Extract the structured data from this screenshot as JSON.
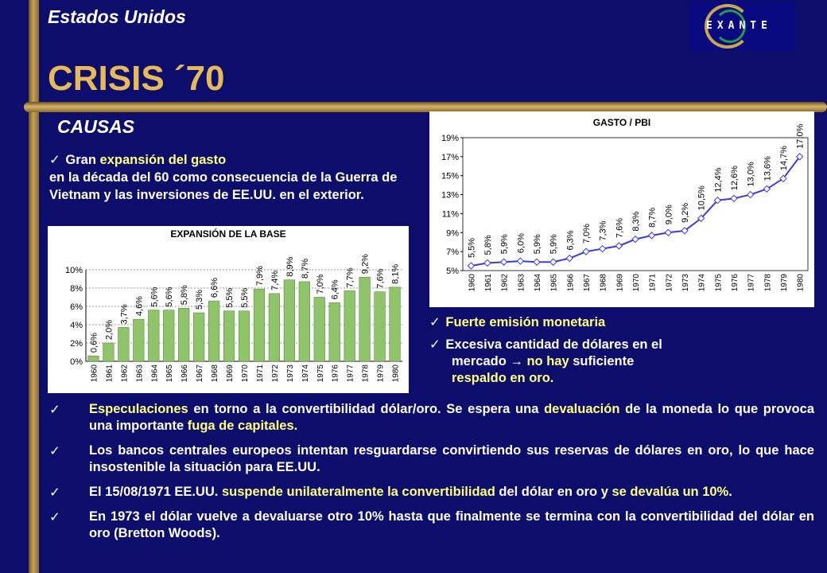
{
  "header": {
    "country": "Estados Unidos",
    "title": "CRISIS ´70",
    "logo_text": "EXANTE"
  },
  "section": {
    "causas": "CAUSAS"
  },
  "para1": {
    "check": "✓",
    "a": "Gran",
    "b": "expansión del gasto",
    "c": "en la década del 60 como consecuencia de la Guerra de Vietnam y las inversiones de EE.UU. en el exterior."
  },
  "right_list": {
    "item1": "Fuerte emisión monetaria",
    "item2_a": "Excesiva cantidad de dólares en el",
    "item2_b": "mercado",
    "item2_arrow": "→",
    "item2_c": "no hay",
    "item2_d": "suficiente",
    "item2_e": "respaldo en oro."
  },
  "bullets": [
    {
      "hl1": "Especulaciones",
      "t1": " en torno a la convertibilidad dólar/oro. Se espera una ",
      "hl2": "devaluación",
      "t2": " de la moneda lo que provoca una importante ",
      "hl3": "fuga de capitales",
      "t3": "."
    },
    {
      "t1": "Los bancos centrales europeos intentan resguardarse convirtiendo sus reservas de dólares en oro, lo que hace insostenible la situación para EE.UU."
    },
    {
      "t1": "El 15/08/1971 EE.UU. ",
      "hl1": "suspende unilateralmente la convertibilidad",
      "t2": " del dólar en oro y ",
      "hl2": "se devalúa un 10%",
      "t3": "."
    },
    {
      "t1": "En 1973 el dólar vuelve a devaluarse otro 10% hasta que finalmente se termina con la convertibilidad del dólar en oro (Bretton Woods)."
    }
  ],
  "colors": {
    "background": "#0d0d6b",
    "gold": "#e6b95a",
    "highlight": "#ffff80",
    "bar_fill": "#8fc46a",
    "line": "#3b3be0"
  },
  "chart_data": [
    {
      "type": "bar",
      "title": "EXPANSIÓN DE LA BASE",
      "categories": [
        "1960",
        "1961",
        "1962",
        "1963",
        "1964",
        "1965",
        "1966",
        "1967",
        "1968",
        "1969",
        "1970",
        "1971",
        "1972",
        "1973",
        "1974",
        "1975",
        "1976",
        "1977",
        "1978",
        "1979",
        "1980"
      ],
      "values": [
        0.6,
        2.0,
        3.7,
        4.6,
        5.6,
        5.6,
        5.8,
        5.3,
        6.6,
        5.5,
        5.5,
        7.9,
        7.4,
        8.9,
        8.7,
        7.0,
        6.4,
        7.7,
        9.2,
        7.6,
        8.1
      ],
      "labels": [
        "0,6%",
        "2,0%",
        "3,7%",
        "4,6%",
        "5,6%",
        "5,6%",
        "5,8%",
        "5,3%",
        "6,6%",
        "5,5%",
        "5,5%",
        "7,9%",
        "7,4%",
        "8,9%",
        "8,7%",
        "7,0%",
        "6,4%",
        "7,7%",
        "9,2%",
        "7,6%",
        "8,1%"
      ],
      "yticks": [
        "0%",
        "2%",
        "4%",
        "6%",
        "8%",
        "10%"
      ],
      "ylim": [
        0,
        10
      ]
    },
    {
      "type": "line",
      "title": "GASTO / PBI",
      "categories": [
        "1960",
        "1961",
        "1962",
        "1963",
        "1964",
        "1965",
        "1966",
        "1967",
        "1968",
        "1969",
        "1970",
        "1971",
        "1972",
        "1973",
        "1974",
        "1975",
        "1976",
        "1977",
        "1978",
        "1979",
        "1980"
      ],
      "values": [
        5.5,
        5.8,
        5.9,
        6.0,
        5.9,
        5.9,
        6.3,
        7.0,
        7.3,
        7.6,
        8.3,
        8.7,
        9.0,
        9.2,
        10.5,
        12.4,
        12.6,
        13.0,
        13.6,
        14.7,
        17.0
      ],
      "labels": [
        "5,5%",
        "5,8%",
        "5,9%",
        "6,0%",
        "5,9%",
        "5,9%",
        "6,3%",
        "7,0%",
        "7,3%",
        "7,6%",
        "8,3%",
        "8,7%",
        "9,0%",
        "9,2%",
        "10,5%",
        "12,4%",
        "12,6%",
        "13,0%",
        "13,6%",
        "14,7%",
        "17,0%"
      ],
      "yticks": [
        "5%",
        "7%",
        "9%",
        "11%",
        "13%",
        "15%",
        "17%",
        "19%"
      ],
      "ylim": [
        5,
        19
      ]
    }
  ]
}
